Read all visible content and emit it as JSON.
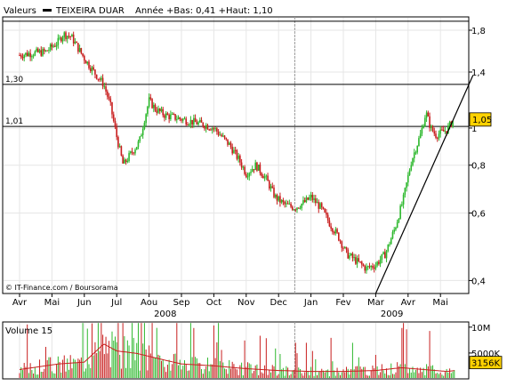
{
  "header": {
    "label": "Valeurs",
    "series_name": "TEIXEIRA DUAR",
    "stats": "Année +Bas: 0,41 +Haut: 1,10"
  },
  "colors": {
    "up": "#2db82d",
    "down": "#c81e1e",
    "frame": "#000000",
    "grid": "#e6e6e6",
    "price_box": "#ffd200",
    "volume_avg": "#c81e1e"
  },
  "chart_data": [
    {
      "type": "candlestick",
      "title": "TEIXEIRA DUAR",
      "y_scale": "log",
      "ylim": [
        0.37,
        1.95
      ],
      "y_ticks": [
        {
          "value": 1.8,
          "label": "1,8"
        },
        {
          "value": 1.4,
          "label": "1,4"
        },
        {
          "value": 1.0,
          "label": "1"
        },
        {
          "value": 0.8,
          "label": "0,8"
        },
        {
          "value": 0.6,
          "label": "0,6"
        },
        {
          "value": 0.4,
          "label": "0,4"
        }
      ],
      "x_ticks": [
        "Avr",
        "Mai",
        "Jun",
        "Jul",
        "Aou",
        "Sep",
        "Oct",
        "Nov",
        "Dec",
        "Jan",
        "Fev",
        "Mar",
        "Avr",
        "Mai"
      ],
      "year_labels": [
        {
          "label": "2008",
          "after_tick": 4
        },
        {
          "label": "2009",
          "after_tick": 11
        }
      ],
      "year_divider_after_tick": 8,
      "horizontal_lines": [
        {
          "value": 1.9,
          "label": ""
        },
        {
          "value": 1.3,
          "label": "1,30"
        },
        {
          "value": 1.01,
          "label": "1,01"
        }
      ],
      "trendline": {
        "from": {
          "month": 11.0,
          "value": 0.37
        },
        "to": {
          "month": 14.0,
          "value": 1.37
        }
      },
      "last_price": {
        "value": 1.05,
        "label": "1,05"
      },
      "grid": true,
      "price_path": [
        [
          0.0,
          1.55
        ],
        [
          0.4,
          1.57
        ],
        [
          0.8,
          1.58
        ],
        [
          1.2,
          1.68
        ],
        [
          1.35,
          1.76
        ],
        [
          1.6,
          1.73
        ],
        [
          1.8,
          1.62
        ],
        [
          2.0,
          1.52
        ],
        [
          2.3,
          1.4
        ],
        [
          2.6,
          1.3
        ],
        [
          2.8,
          1.15
        ],
        [
          3.0,
          0.95
        ],
        [
          3.2,
          0.8
        ],
        [
          3.45,
          0.86
        ],
        [
          3.7,
          0.92
        ],
        [
          3.85,
          1.05
        ],
        [
          4.0,
          1.18
        ],
        [
          4.2,
          1.12
        ],
        [
          4.5,
          1.08
        ],
        [
          4.9,
          1.06
        ],
        [
          5.3,
          1.04
        ],
        [
          5.7,
          1.02
        ],
        [
          6.0,
          1.0
        ],
        [
          6.2,
          0.96
        ],
        [
          6.5,
          0.9
        ],
        [
          6.8,
          0.82
        ],
        [
          7.0,
          0.76
        ],
        [
          7.3,
          0.8
        ],
        [
          7.6,
          0.74
        ],
        [
          7.9,
          0.66
        ],
        [
          8.2,
          0.63
        ],
        [
          8.5,
          0.62
        ],
        [
          8.8,
          0.64
        ],
        [
          9.0,
          0.66
        ],
        [
          9.3,
          0.62
        ],
        [
          9.6,
          0.56
        ],
        [
          9.85,
          0.52
        ],
        [
          10.1,
          0.47
        ],
        [
          10.4,
          0.45
        ],
        [
          10.7,
          0.43
        ],
        [
          11.0,
          0.44
        ],
        [
          11.3,
          0.47
        ],
        [
          11.6,
          0.55
        ],
        [
          11.85,
          0.65
        ],
        [
          12.1,
          0.82
        ],
        [
          12.4,
          0.97
        ],
        [
          12.55,
          1.1
        ],
        [
          12.7,
          1.0
        ],
        [
          12.85,
          0.96
        ],
        [
          13.0,
          0.97
        ],
        [
          13.2,
          0.99
        ],
        [
          13.4,
          1.05
        ]
      ],
      "source_note": "© IT-Finance.com / Boursorama"
    },
    {
      "type": "bar",
      "title": "Volume 15",
      "y_ticks": [
        {
          "value": 10000000,
          "label": "10M"
        },
        {
          "value": 5000000,
          "label": "5000K"
        }
      ],
      "ylim": [
        0,
        11000000
      ],
      "last_value": {
        "value": 3156000,
        "label": "3156K"
      },
      "volume_profile": [
        [
          0.0,
          2.0
        ],
        [
          0.6,
          2.6
        ],
        [
          1.2,
          3.2
        ],
        [
          2.0,
          3.6
        ],
        [
          2.6,
          7.5
        ],
        [
          3.0,
          6.0
        ],
        [
          3.6,
          5.5
        ],
        [
          4.2,
          4.5
        ],
        [
          5.0,
          3.2
        ],
        [
          6.0,
          2.8
        ],
        [
          7.0,
          2.2
        ],
        [
          8.0,
          1.8
        ],
        [
          9.0,
          1.6
        ],
        [
          10.0,
          1.6
        ],
        [
          11.0,
          1.8
        ],
        [
          11.8,
          2.4
        ],
        [
          12.5,
          2.0
        ],
        [
          13.2,
          1.6
        ],
        [
          13.45,
          1.8
        ]
      ]
    }
  ]
}
